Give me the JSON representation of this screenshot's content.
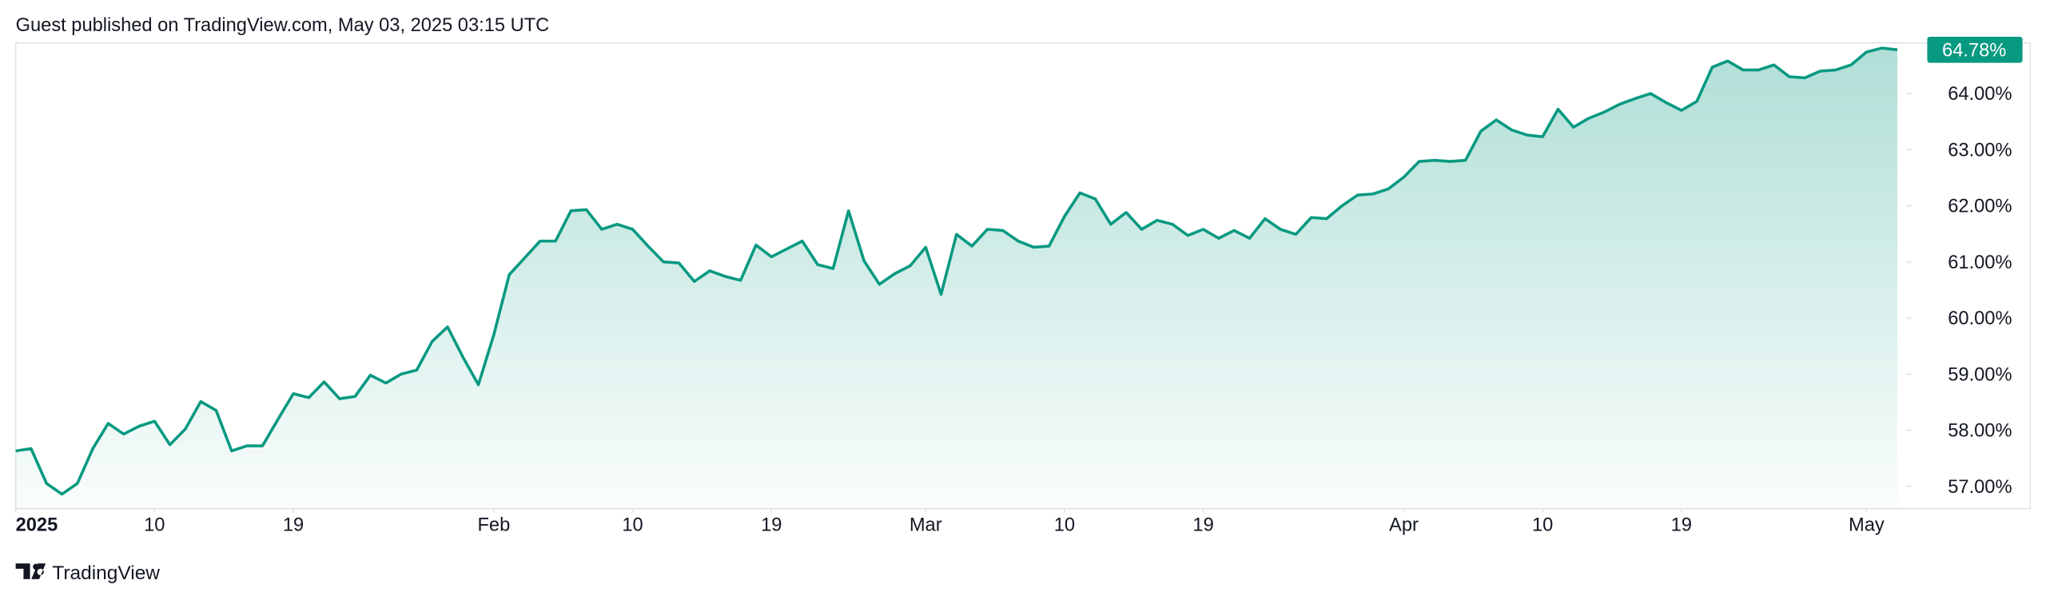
{
  "header": "Guest published on TradingView.com, May 03, 2025 03:15 UTC",
  "brand": "TradingView",
  "chart_data": {
    "type": "area",
    "price_label": "64.78%",
    "x": [
      1,
      2,
      3,
      4,
      5,
      6,
      7,
      8,
      9,
      10,
      11,
      12,
      13,
      14,
      15,
      16,
      17,
      18,
      19,
      20,
      21,
      22,
      23,
      24,
      25,
      26,
      27,
      28,
      29,
      30,
      31,
      32,
      33,
      34,
      35,
      36,
      37,
      38,
      39,
      40,
      41,
      42,
      43,
      44,
      45,
      46,
      47,
      48,
      49,
      50,
      51,
      52,
      53,
      54,
      55,
      56,
      57,
      58,
      59,
      60,
      61,
      62,
      63,
      64,
      65,
      66,
      67,
      68,
      69,
      70,
      71,
      72,
      73,
      74,
      75,
      76,
      77,
      78,
      79,
      80,
      81,
      82,
      83,
      84,
      85,
      86,
      87,
      88,
      89,
      90,
      91,
      92,
      93,
      94,
      95,
      96,
      97,
      98,
      99,
      100,
      101,
      102,
      103,
      104,
      105,
      106,
      107,
      108,
      109,
      110,
      111,
      112,
      113,
      114,
      115,
      116,
      117,
      118,
      119,
      120,
      121,
      122,
      123
    ],
    "series": [
      {
        "color": "#089981",
        "values": [
          57.63,
          57.67,
          57.05,
          56.86,
          57.05,
          57.67,
          58.12,
          57.93,
          58.07,
          58.16,
          57.74,
          58.02,
          58.51,
          58.35,
          57.63,
          57.72,
          57.72,
          58.19,
          58.65,
          58.58,
          58.86,
          58.56,
          58.6,
          58.98,
          58.84,
          59.0,
          59.07,
          59.58,
          59.84,
          59.3,
          58.81,
          59.7,
          60.77,
          61.07,
          61.37,
          61.37,
          61.91,
          61.93,
          61.58,
          61.67,
          61.58,
          61.28,
          61.0,
          60.98,
          60.65,
          60.84,
          60.74,
          60.67,
          61.3,
          61.09,
          61.23,
          61.37,
          60.95,
          60.88,
          61.91,
          61.02,
          60.6,
          60.79,
          60.93,
          61.26,
          60.42,
          61.49,
          61.28,
          61.58,
          61.56,
          61.37,
          61.26,
          61.28,
          61.81,
          62.23,
          62.12,
          61.67,
          61.88,
          61.58,
          61.74,
          61.67,
          61.47,
          61.58,
          61.42,
          61.56,
          61.42,
          61.77,
          61.58,
          61.49,
          61.79,
          61.77,
          62.0,
          62.19,
          62.21,
          62.3,
          62.51,
          62.79,
          62.81,
          62.79,
          62.81,
          63.33,
          63.53,
          63.35,
          63.26,
          63.23,
          63.72,
          63.4,
          63.56,
          63.67,
          63.81,
          63.91,
          64.0,
          63.84,
          63.7,
          63.86,
          64.47,
          64.58,
          64.42,
          64.42,
          64.51,
          64.3,
          64.28,
          64.4,
          64.42,
          64.51,
          64.74,
          64.81,
          64.78
        ]
      }
    ],
    "xlim": [
      1,
      123.5
    ],
    "xticks": [
      {
        "value": 1,
        "label": "2025"
      },
      {
        "value": 10,
        "label": "10"
      },
      {
        "value": 19,
        "label": "19"
      },
      {
        "value": 32,
        "label": "Feb"
      },
      {
        "value": 41,
        "label": "10"
      },
      {
        "value": 50,
        "label": "19"
      },
      {
        "value": 60,
        "label": "Mar"
      },
      {
        "value": 69,
        "label": "10"
      },
      {
        "value": 78,
        "label": "19"
      },
      {
        "value": 91,
        "label": "Apr"
      },
      {
        "value": 100,
        "label": "10"
      },
      {
        "value": 109,
        "label": "19"
      },
      {
        "value": 121,
        "label": "May"
      }
    ],
    "ylim": [
      56.6,
      64.9
    ],
    "yticks": [
      {
        "value": 57,
        "label": "57.00%"
      },
      {
        "value": 58,
        "label": "58.00%"
      },
      {
        "value": 59,
        "label": "59.00%"
      },
      {
        "value": 60,
        "label": "60.00%"
      },
      {
        "value": 61,
        "label": "61.00%"
      },
      {
        "value": 62,
        "label": "62.00%"
      },
      {
        "value": 63,
        "label": "63.00%"
      },
      {
        "value": 64,
        "label": "64.00%"
      }
    ],
    "grid": false
  }
}
